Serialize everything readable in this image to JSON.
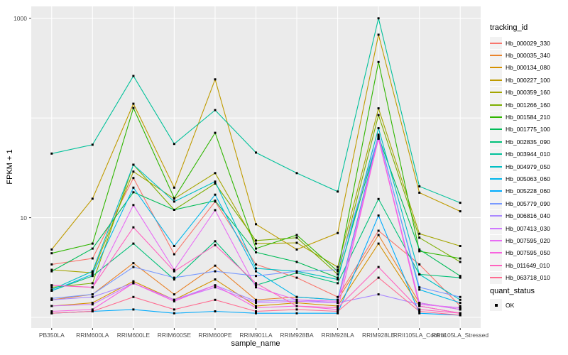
{
  "figure": {
    "legend": {
      "tracking_title": "tracking_id",
      "quant_title": "quant_status",
      "quant_items": [
        {
          "label": "OK",
          "marker": "black-square"
        }
      ]
    }
  },
  "chart_data": {
    "type": "line",
    "title": "",
    "xlabel": "sample_name",
    "ylabel": "FPKM + 1",
    "y_scale": "log10",
    "ylim": [
      1,
      1200
    ],
    "grid": "major-white-on-gray",
    "legend_position": "right",
    "point_marker": "small black square (quant_status OK)",
    "y_tick_labels": [
      "1000",
      "10"
    ],
    "y_tick_values": [
      1000,
      10
    ],
    "y_gridline_values": [
      1,
      10,
      100,
      1000
    ],
    "categories": [
      "PB350LA",
      "RRIM600LA",
      "RRIM600LE",
      "RRIM600SE",
      "RRIM600PE",
      "RRIM901LA",
      "RRIM928BA",
      "RRIM928LA",
      "RRIM928LE",
      "RRII105LA_Control",
      "RRII105LA_Stressed"
    ],
    "series": [
      {
        "name": "Hb_000029_330",
        "color": "#F8766D",
        "values": [
          3.4,
          3.9,
          25,
          4.3,
          14.5,
          3.4,
          2.5,
          1.6,
          7.4,
          3.4,
          1.3
        ]
      },
      {
        "name": "Hb_000035_340",
        "color": "#E9842C",
        "values": [
          1.5,
          1.7,
          3.5,
          1.7,
          3.3,
          1.5,
          1.6,
          1.5,
          6.7,
          1.4,
          1.2
        ]
      },
      {
        "name": "Hb_000134_080",
        "color": "#D59100",
        "values": [
          1.3,
          1.4,
          2.3,
          1.5,
          2.4,
          1.3,
          1.4,
          1.3,
          5.5,
          1.3,
          1.1
        ]
      },
      {
        "name": "Hb_000227_100",
        "color": "#BF9B00",
        "values": [
          4.8,
          15.5,
          139,
          20,
          244,
          8.6,
          4.8,
          7.0,
          685,
          17.8,
          11.6
        ]
      },
      {
        "name": "Hb_000359_160",
        "color": "#A4A500",
        "values": [
          3.0,
          2.8,
          29,
          15.5,
          28,
          5.5,
          5.6,
          3.2,
          125,
          6.9,
          5.2
        ]
      },
      {
        "name": "Hb_001266_160",
        "color": "#7CAE00",
        "values": [
          2.0,
          2.2,
          34,
          12,
          22,
          5.9,
          6.3,
          2.7,
          107,
          6.3,
          3.6
        ]
      },
      {
        "name": "Hb_001584_210",
        "color": "#2FB600",
        "values": [
          4.4,
          5.5,
          126,
          15.7,
          71,
          4.9,
          6.7,
          2.9,
          365,
          4.6,
          3.9
        ]
      },
      {
        "name": "Hb_001775_100",
        "color": "#00BB57",
        "values": [
          2.9,
          4.9,
          18,
          12,
          14.8,
          4.5,
          3.6,
          2.5,
          65,
          4.8,
          2.6
        ]
      },
      {
        "name": "Hb_002835_090",
        "color": "#00C078",
        "values": [
          1.85,
          2.6,
          5.5,
          2.4,
          5.8,
          2.1,
          2.8,
          2.2,
          15.4,
          2.7,
          2.5
        ]
      },
      {
        "name": "Hb_003944_010",
        "color": "#00C19A",
        "values": [
          44,
          54,
          264,
          55,
          120,
          45,
          28,
          18.3,
          1000,
          20.6,
          14.1
        ]
      },
      {
        "name": "Hb_004979_050",
        "color": "#00BFC4",
        "values": [
          1.9,
          2.9,
          34,
          14.5,
          23,
          3.1,
          2.9,
          2.4,
          79,
          2.7,
          1.5
        ]
      },
      {
        "name": "Hb_005063_060",
        "color": "#00B6EB",
        "values": [
          1.85,
          2.7,
          20,
          5.2,
          17,
          2.9,
          1.6,
          1.5,
          68,
          1.9,
          1.4
        ]
      },
      {
        "name": "Hb_005228_060",
        "color": "#00ABFD",
        "values": [
          1.1,
          1.15,
          1.2,
          1.1,
          1.15,
          1.1,
          1.1,
          1.1,
          10.5,
          1.1,
          1.05
        ]
      },
      {
        "name": "Hb_005779_090",
        "color": "#7899FF",
        "values": [
          1.55,
          1.7,
          3.2,
          2.5,
          2.9,
          2.6,
          2.9,
          3.0,
          66,
          2.0,
          1.6
        ]
      },
      {
        "name": "Hb_006816_040",
        "color": "#AA88FF",
        "values": [
          1.5,
          1.6,
          2.2,
          1.5,
          2.1,
          1.45,
          1.5,
          1.4,
          1.7,
          1.35,
          1.25
        ]
      },
      {
        "name": "Hb_007413_030",
        "color": "#CF78FF",
        "values": [
          1.3,
          1.35,
          2.2,
          1.5,
          2.0,
          1.4,
          1.45,
          1.4,
          62,
          1.4,
          1.2
        ]
      },
      {
        "name": "Hb_007595_020",
        "color": "#E86CF4",
        "values": [
          2.1,
          2.0,
          13.4,
          3.0,
          11.9,
          2.0,
          1.5,
          1.45,
          64,
          1.35,
          1.25
        ]
      },
      {
        "name": "Hb_007595_050",
        "color": "#F863DF",
        "values": [
          1.15,
          1.2,
          2.2,
          1.45,
          2.1,
          1.25,
          1.3,
          1.2,
          62,
          1.3,
          1.1
        ]
      },
      {
        "name": "Hb_011649_010",
        "color": "#FF62BF",
        "values": [
          2.1,
          2.0,
          8.0,
          2.9,
          5.3,
          2.2,
          1.3,
          1.25,
          3.2,
          1.2,
          1.1
        ]
      },
      {
        "name": "Hb_063718_010",
        "color": "#FF6C91",
        "values": [
          1.1,
          1.15,
          1.6,
          1.2,
          1.5,
          1.15,
          1.2,
          1.15,
          2.5,
          1.15,
          1.05
        ]
      }
    ],
    "colors": {
      "panel_bg": "#EBEBEB",
      "gridline": "#FFFFFF",
      "point": "#000000",
      "axis_text": "#4D4D4D",
      "legend_key_bg": "#F2F2F2"
    }
  }
}
